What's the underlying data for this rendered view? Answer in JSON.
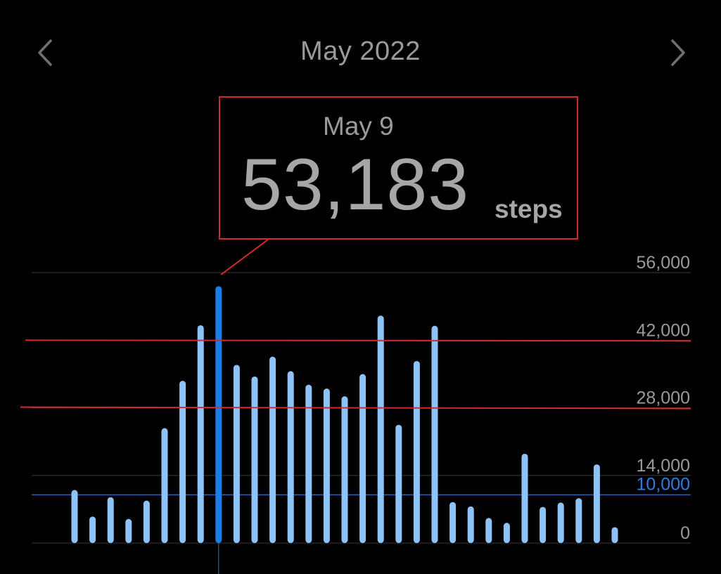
{
  "header": {
    "title": "May 2022",
    "prev_icon": "chevron-left-icon",
    "next_icon": "chevron-right-icon"
  },
  "tooltip": {
    "date": "May 9",
    "value": "53,183",
    "unit": "steps"
  },
  "colors": {
    "background": "#000000",
    "bar": "#8ec3f7",
    "bar_selected": "#1a7de8",
    "goal_line": "#3a6fc4",
    "goal_label": "#2f7be0",
    "annotation_red": "#d32a2a",
    "grid": "#3a3a3a",
    "text": "#9a9a9a"
  },
  "chart_data": {
    "type": "bar",
    "x": [
      1,
      2,
      3,
      4,
      5,
      6,
      7,
      8,
      9,
      10,
      11,
      12,
      13,
      14,
      15,
      16,
      17,
      18,
      19,
      20,
      21,
      22,
      23,
      24,
      25,
      26,
      27,
      28,
      29,
      30,
      31
    ],
    "values": [
      11000,
      5500,
      9500,
      5000,
      8800,
      23800,
      33600,
      45100,
      53183,
      36900,
      34500,
      38600,
      35600,
      32800,
      32000,
      30400,
      35000,
      47100,
      24500,
      37700,
      45000,
      8500,
      7600,
      5200,
      4200,
      18500,
      7500,
      8400,
      9300,
      16300,
      3300
    ],
    "selected_index": 8,
    "y_ticks": [
      "56,000",
      "42,000",
      "28,000",
      "14,000",
      "0"
    ],
    "y_tick_values": [
      56000,
      42000,
      28000,
      14000,
      0
    ],
    "ylim": [
      0,
      56000
    ],
    "goal": {
      "value": 10000,
      "label": "10,000"
    },
    "annotation_lines": [
      42000,
      28000
    ],
    "grid": true,
    "title": "",
    "xlabel": "",
    "ylabel": ""
  }
}
